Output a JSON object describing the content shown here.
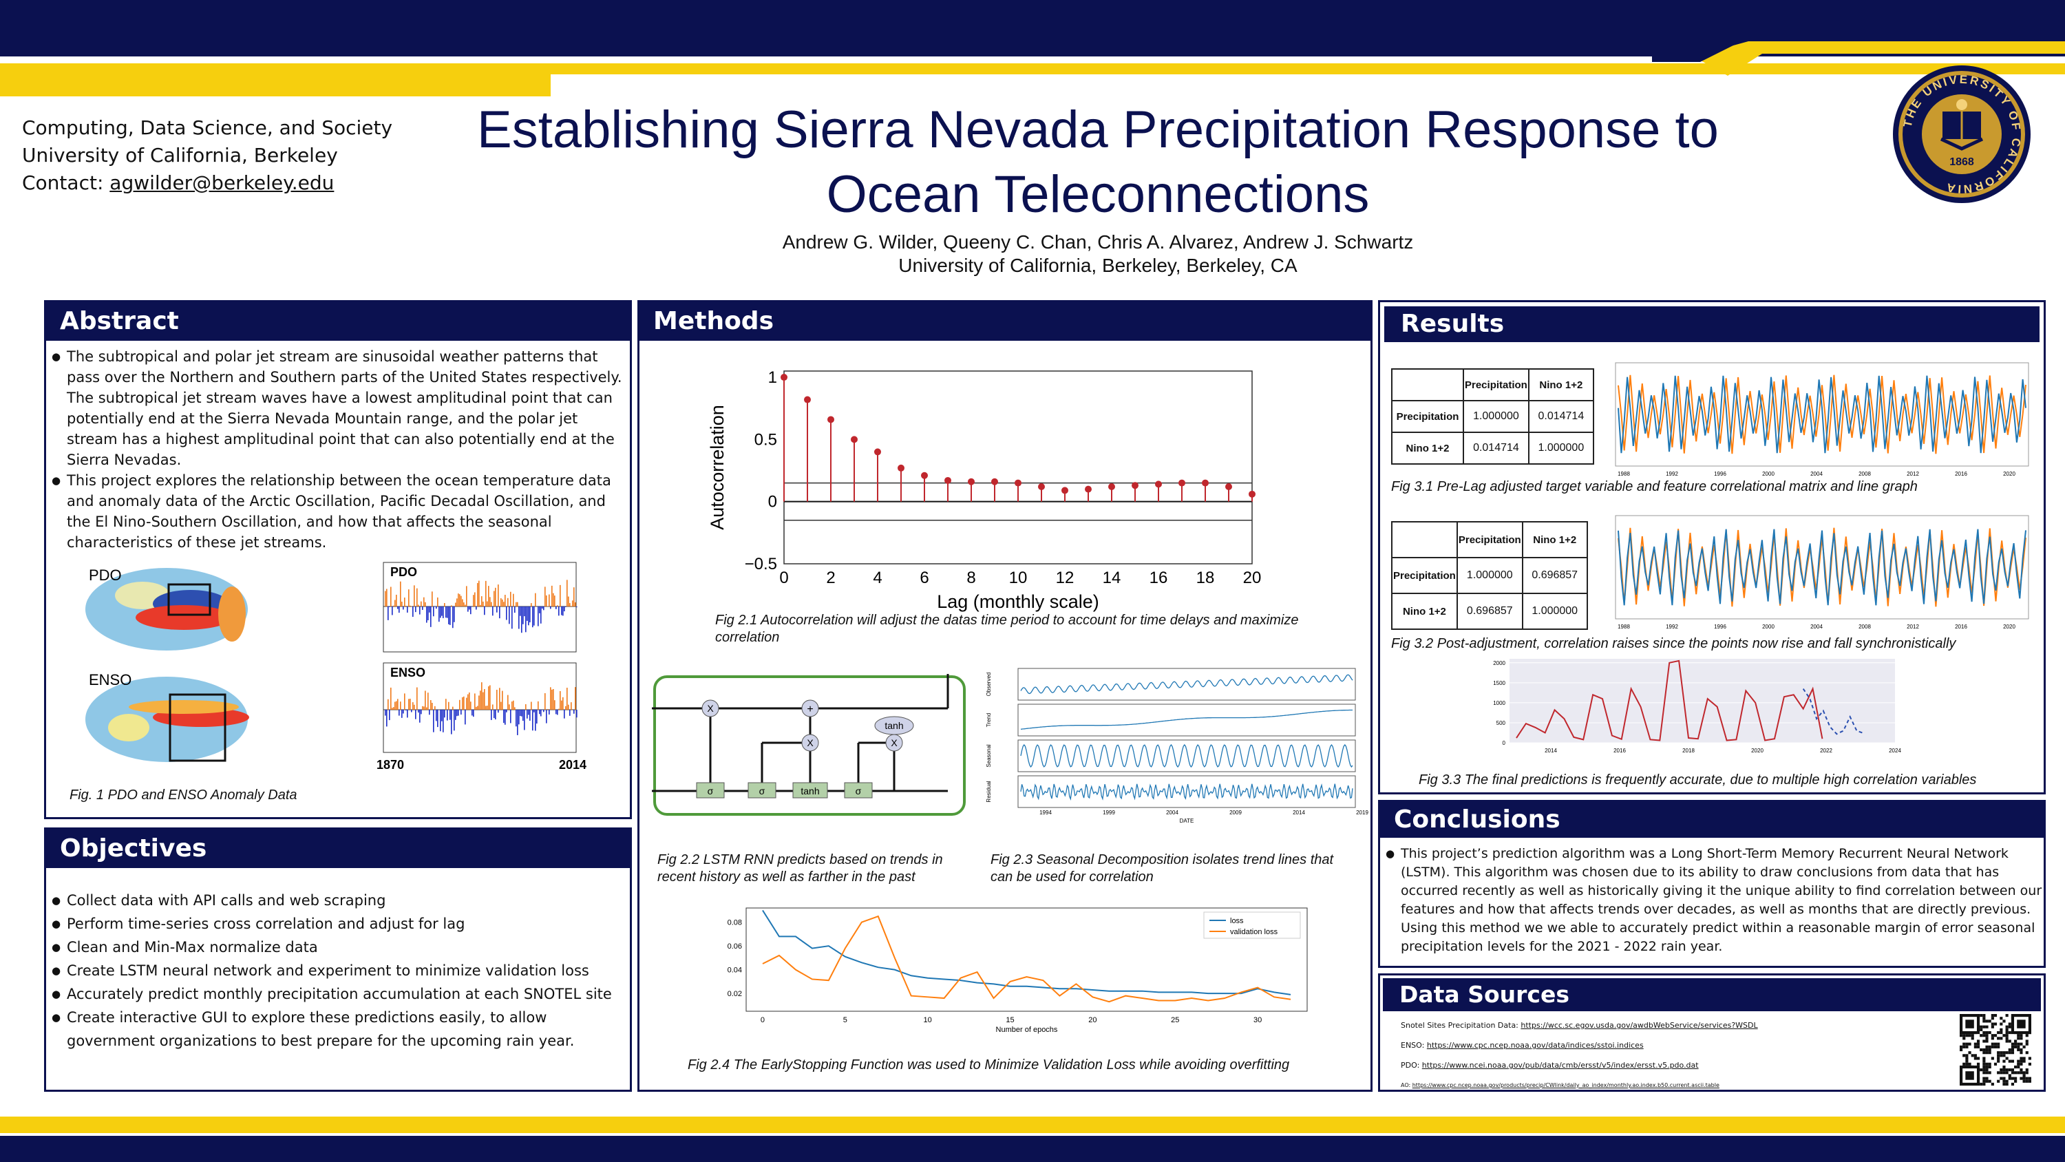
{
  "header": {
    "affiliation_lines": [
      "Computing, Data Science, and Society",
      "University of California, Berkeley"
    ],
    "contact_label": "Contact:",
    "contact_email": "agwilder@berkeley.edu",
    "title_line1": "Establishing Sierra Nevada Precipitation Response to",
    "title_line2": "Ocean Teleconnections",
    "authors": "Andrew G. Wilder, Queeny C. Chan, Chris A. Alvarez, Andrew J. Schwartz",
    "institution": "University of California, Berkeley, Berkeley, CA",
    "seal_ring_text": "THE UNIVERSITY OF CALIFORNIA",
    "seal_year": "1868"
  },
  "colors": {
    "navy": "#0b1150",
    "gold": "#f6cf0e",
    "stem_red": "#c0272d",
    "series_blue": "#1f77b4",
    "series_orange": "#ff7f0e"
  },
  "abstract": {
    "heading": "Abstract",
    "paragraphs": [
      "The subtropical and polar jet stream are sinusoidal weather patterns that pass over the Northern and Southern parts of the United States respectively. The subtropical jet stream waves have a lowest amplitudinal point that can potentially end at the Sierra Nevada Mountain range, and the polar jet stream has a highest amplitudinal point that can also potentially end at the Sierra Nevadas.",
      "This project explores the relationship between the ocean temperature data and anomaly data of the Arctic Oscillation, Pacific Decadal Oscillation, and the El Nino-Southern Oscillation, and how that affects the seasonal characteristics of these jet streams."
    ],
    "map_labels": [
      "PDO",
      "ENSO"
    ],
    "bar_labels": [
      "PDO",
      "ENSO"
    ],
    "year_start": "1870",
    "year_end": "2014",
    "figure_caption": "Fig. 1  PDO and ENSO Anomaly Data"
  },
  "objectives": {
    "heading": "Objectives",
    "items": [
      "Collect data with API calls and web scraping",
      "Perform time-series cross correlation and adjust for lag",
      "Clean and Min-Max normalize data",
      "Create LSTM neural network and experiment to minimize validation loss",
      "Accurately predict monthly precipitation accumulation at each SNOTEL site",
      "Create interactive GUI to explore these predictions easily, to allow government organizations to best prepare for the upcoming rain year."
    ]
  },
  "methods": {
    "heading": "Methods",
    "fig21_caption": "Fig 2.1 Autocorrelation will adjust the datas time period to account for time delays and maximize correlation",
    "fig22_caption": "Fig 2.2 LSTM RNN predicts based on trends in recent history as well as farther in the past",
    "fig23_caption": "Fig 2.3 Seasonal Decomposition isolates trend lines that can be used for correlation",
    "fig24_caption": "Fig 2.4 The EarlyStopping Function was used to Minimize Validation Loss while avoiding overfitting",
    "lstm_labels": {
      "times": "X",
      "plus": "+",
      "tanh": "tanh",
      "sigma": "σ"
    },
    "decomp_labels": [
      "Observed",
      "Trend",
      "Seasonal",
      "Residual"
    ],
    "decomp_xticks": [
      "1994",
      "1999",
      "2004",
      "2009",
      "2014",
      "2019"
    ],
    "decomp_xlabel": "DATE"
  },
  "results": {
    "heading": "Results",
    "table1": {
      "cols": [
        "Precipitation",
        "Nino 1+2"
      ],
      "rows": [
        [
          "Precipitation",
          "1.000000",
          "0.014714"
        ],
        [
          "Nino 1+2",
          "0.014714",
          "1.000000"
        ]
      ]
    },
    "table2": {
      "cols": [
        "Precipitation",
        "Nino 1+2"
      ],
      "rows": [
        [
          "Precipitation",
          "1.000000",
          "0.696857"
        ],
        [
          "Nino 1+2",
          "0.696857",
          "1.000000"
        ]
      ]
    },
    "line_xticks": [
      "1988",
      "1992",
      "1996",
      "2000",
      "2004",
      "2008",
      "2012",
      "2016",
      "2020"
    ],
    "fig31_caption": "Fig 3.1 Pre-Lag adjusted target variable and feature correlational matrix and line graph",
    "fig32_caption": "Fig 3.2 Post-adjustment, correlation raises since the points now rise and fall synchronistically",
    "fig33_caption": "Fig 3.3 The final predictions is frequently accurate, due to multiple high correlation variables"
  },
  "conclusions": {
    "heading": "Conclusions",
    "text": "This project’s prediction algorithm was a Long Short-Term Memory Recurrent Neural Network (LSTM). This algorithm was chosen due to its ability to draw conclusions from data that has occurred recently as well as historically giving it the unique ability to find correlation between our features and how that affects trends over decades, as well as months that are directly previous. Using this method we we able to accurately predict within a reasonable margin of error seasonal precipitation levels for the 2021 - 2022 rain year."
  },
  "data_sources": {
    "heading": "Data Sources",
    "items": [
      {
        "label": "Snotel Sites Precipitation Data:",
        "url": "https://wcc.sc.egov.usda.gov/awdbWebService/services?WSDL"
      },
      {
        "label": "ENSO:",
        "url": "https://www.cpc.ncep.noaa.gov/data/indices/sstoi.indices"
      },
      {
        "label": "PDO:",
        "url": "https://www.ncei.noaa.gov/pub/data/cmb/ersst/v5/index/ersst.v5.pdo.dat"
      },
      {
        "label": "AO:",
        "url": "https://www.cpc.ncep.noaa.gov/products/precip/CWlink/daily_ao_index/monthly.ao.index.b50.current.ascii.table"
      }
    ]
  },
  "chart_data": [
    {
      "id": "autocorrelation",
      "type": "scatter",
      "xlabel": "Lag (monthly scale)",
      "ylabel": "Autocorrelation",
      "xlim": [
        0,
        20
      ],
      "ylim": [
        -0.5,
        1.05
      ],
      "xticks": [
        0,
        2,
        4,
        6,
        8,
        10,
        12,
        14,
        16,
        18,
        20
      ],
      "yticks": [
        -0.5,
        0,
        0.5,
        1
      ],
      "x": [
        0,
        1,
        2,
        3,
        4,
        5,
        6,
        7,
        8,
        9,
        10,
        11,
        12,
        13,
        14,
        15,
        16,
        17,
        18,
        19,
        20
      ],
      "y": [
        1.0,
        0.82,
        0.66,
        0.5,
        0.4,
        0.27,
        0.21,
        0.17,
        0.16,
        0.16,
        0.15,
        0.12,
        0.09,
        0.1,
        0.12,
        0.13,
        0.14,
        0.15,
        0.15,
        0.12,
        0.06
      ],
      "confidence_band": [
        -0.15,
        0.15
      ],
      "grid": false
    },
    {
      "id": "loss",
      "type": "line",
      "xlabel": "Number of epochs",
      "xlim": [
        -1,
        33
      ],
      "ylim": [
        0.005,
        0.092
      ],
      "xticks": [
        0,
        5,
        10,
        15,
        20,
        25,
        30
      ],
      "yticks": [
        0.02,
        0.04,
        0.06,
        0.08
      ],
      "legend": "top-right",
      "series": [
        {
          "name": "loss",
          "values": [
            0.09,
            0.068,
            0.068,
            0.058,
            0.06,
            0.051,
            0.046,
            0.042,
            0.04,
            0.035,
            0.033,
            0.032,
            0.031,
            0.029,
            0.028,
            0.026,
            0.026,
            0.025,
            0.024,
            0.024,
            0.023,
            0.022,
            0.022,
            0.022,
            0.021,
            0.021,
            0.021,
            0.02,
            0.02,
            0.02,
            0.024,
            0.021,
            0.019
          ]
        },
        {
          "name": "validation loss",
          "values": [
            0.045,
            0.052,
            0.04,
            0.032,
            0.031,
            0.058,
            0.08,
            0.085,
            0.05,
            0.018,
            0.017,
            0.016,
            0.033,
            0.038,
            0.016,
            0.03,
            0.034,
            0.031,
            0.018,
            0.028,
            0.017,
            0.013,
            0.018,
            0.016,
            0.014,
            0.014,
            0.016,
            0.014,
            0.016,
            0.021,
            0.025,
            0.017,
            0.015
          ]
        }
      ]
    },
    {
      "id": "predictions",
      "type": "line",
      "xticks": [
        "2014",
        "2016",
        "2018",
        "2020",
        "2022",
        "2024"
      ],
      "yticks": [
        "0",
        "500",
        "1000",
        "1500",
        "2000"
      ],
      "series": [
        {
          "name": "",
          "values": [
            120,
            480,
            380,
            250,
            820,
            600,
            140,
            80,
            1200,
            1100,
            180,
            90,
            1350,
            900,
            80,
            60,
            2000,
            2050,
            120,
            100,
            1100,
            900,
            60,
            80,
            1300,
            1000,
            60,
            100,
            1150,
            1200,
            850,
            1350,
            100
          ]
        },
        {
          "name": "",
          "values": [
            1350,
            1100,
            600,
            800,
            400,
            220,
            300,
            650,
            300,
            240
          ]
        }
      ]
    }
  ]
}
